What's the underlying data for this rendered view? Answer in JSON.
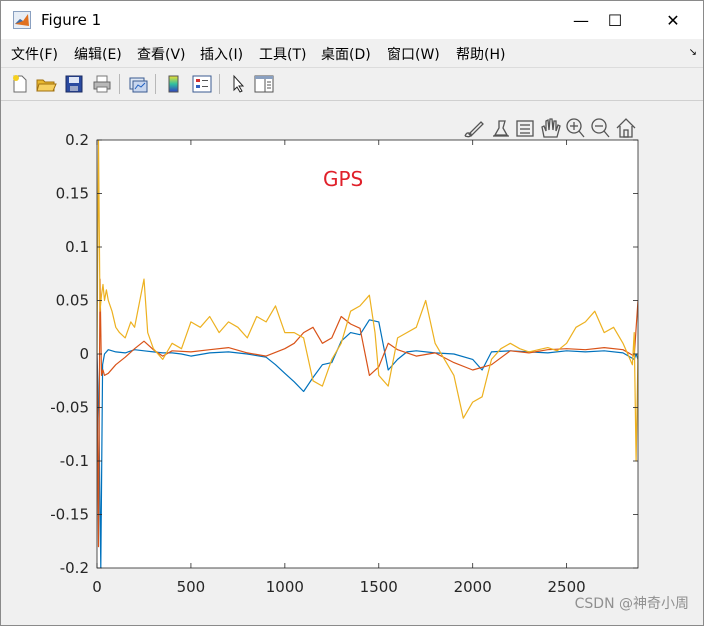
{
  "window": {
    "title": "Figure 1",
    "minimize_glyph": "—",
    "maximize_glyph": "☐",
    "close_glyph": "✕"
  },
  "menu": {
    "items": [
      "文件(F)",
      "编辑(E)",
      "查看(V)",
      "插入(I)",
      "工具(T)",
      "桌面(D)",
      "窗口(W)",
      "帮助(H)"
    ]
  },
  "toolbar": {
    "icons": [
      "new-figure-icon",
      "open-file-icon",
      "save-icon",
      "print-icon",
      "link-plot-icon",
      "colorbar-icon",
      "legend-icon",
      "pointer-icon",
      "property-editor-icon"
    ]
  },
  "axes_toolbar": {
    "icons": [
      "brush-icon",
      "data-tips-icon",
      "rotate-icon",
      "pan-icon",
      "zoom-in-icon",
      "zoom-out-icon",
      "home-icon"
    ]
  },
  "watermark": "CSDN @神奇小周",
  "colors": {
    "series1": "#0072BD",
    "series2": "#D95319",
    "series3": "#EDB120",
    "annotation": "#E0202A"
  },
  "chart_data": {
    "type": "line",
    "title": "",
    "annotation": "GPS",
    "xlabel": "",
    "ylabel": "",
    "xlim": [
      0,
      2880
    ],
    "ylim": [
      -0.2,
      0.2
    ],
    "xticks": [
      0,
      500,
      1000,
      1500,
      2000,
      2500
    ],
    "xtick_labels": [
      "0",
      "500",
      "1000",
      "1500",
      "2000",
      "2500"
    ],
    "yticks": [
      -0.2,
      -0.15,
      -0.1,
      -0.05,
      0,
      0.05,
      0.1,
      0.15,
      0.2
    ],
    "ytick_labels": [
      "-0.2",
      "-0.15",
      "-0.1",
      "-0.05",
      "0",
      "0.05",
      "0.1",
      "0.15",
      "0.2"
    ],
    "grid": false,
    "series": [
      {
        "x": [
          0,
          10,
          20,
          30,
          40,
          60,
          100,
          150,
          200,
          250,
          300,
          350,
          400,
          450,
          500,
          600,
          700,
          800,
          900,
          950,
          1000,
          1050,
          1100,
          1150,
          1200,
          1250,
          1300,
          1350,
          1400,
          1450,
          1500,
          1550,
          1600,
          1650,
          1700,
          1800,
          1900,
          2000,
          2050,
          2100,
          2200,
          2300,
          2400,
          2500,
          2600,
          2700,
          2800,
          2860,
          2870,
          2880
        ],
        "values": [
          0,
          -0.06,
          -0.2,
          -0.01,
          0,
          0.004,
          0.002,
          0.001,
          0.004,
          0.003,
          0.002,
          0.001,
          0.001,
          0.0,
          -0.002,
          0.001,
          0.002,
          0.0,
          -0.003,
          -0.01,
          -0.018,
          -0.026,
          -0.035,
          -0.022,
          -0.01,
          -0.008,
          0.012,
          0.02,
          0.018,
          0.032,
          0.03,
          -0.015,
          -0.005,
          0.002,
          0.003,
          0.001,
          0.0,
          -0.005,
          -0.015,
          0.002,
          0.003,
          0.002,
          0.001,
          0.003,
          0.002,
          0.003,
          0.001,
          -0.005,
          0.0,
          -0.005
        ]
      },
      {
        "x": [
          0,
          8,
          16,
          24,
          32,
          40,
          60,
          100,
          150,
          200,
          250,
          300,
          350,
          400,
          500,
          600,
          700,
          800,
          900,
          1000,
          1050,
          1100,
          1150,
          1200,
          1250,
          1300,
          1350,
          1400,
          1450,
          1500,
          1550,
          1600,
          1700,
          1800,
          1900,
          2000,
          2100,
          2200,
          2300,
          2400,
          2500,
          2600,
          2700,
          2800,
          2860,
          2880
        ],
        "values": [
          0,
          -0.18,
          0.07,
          -0.02,
          -0.015,
          -0.02,
          -0.018,
          -0.01,
          -0.003,
          0.005,
          0.012,
          0.004,
          -0.002,
          0.003,
          0.002,
          0.004,
          0.006,
          0.001,
          -0.002,
          0.005,
          0.01,
          0.02,
          0.025,
          0.01,
          0.015,
          0.035,
          0.028,
          0.024,
          -0.02,
          -0.012,
          0.01,
          0.004,
          -0.002,
          0.001,
          -0.008,
          -0.015,
          -0.01,
          0.003,
          0.001,
          0.004,
          0.005,
          0.004,
          0.006,
          0.004,
          -0.002,
          0.05
        ]
      },
      {
        "x": [
          0,
          8,
          16,
          24,
          32,
          40,
          50,
          60,
          80,
          100,
          120,
          150,
          180,
          200,
          250,
          270,
          300,
          350,
          400,
          450,
          500,
          550,
          600,
          650,
          700,
          750,
          800,
          850,
          900,
          950,
          1000,
          1050,
          1100,
          1150,
          1200,
          1250,
          1300,
          1350,
          1400,
          1450,
          1480,
          1500,
          1550,
          1600,
          1650,
          1700,
          1750,
          1800,
          1850,
          1900,
          1950,
          2000,
          2050,
          2100,
          2150,
          2200,
          2250,
          2300,
          2350,
          2400,
          2450,
          2500,
          2550,
          2600,
          2650,
          2700,
          2750,
          2800,
          2850,
          2860,
          2870,
          2880
        ],
        "values": [
          0,
          0.2,
          0.04,
          0.055,
          0.065,
          0.05,
          0.06,
          0.05,
          0.04,
          0.025,
          0.02,
          0.015,
          0.03,
          0.025,
          0.07,
          0.02,
          0.005,
          -0.005,
          0.01,
          0.005,
          0.03,
          0.025,
          0.035,
          0.02,
          0.03,
          0.025,
          0.015,
          0.035,
          0.03,
          0.045,
          0.02,
          0.02,
          0.015,
          -0.025,
          -0.03,
          -0.005,
          0.01,
          0.04,
          0.045,
          0.055,
          0.02,
          -0.02,
          -0.03,
          0.015,
          0.02,
          0.025,
          0.05,
          0.01,
          -0.005,
          -0.02,
          -0.06,
          -0.045,
          -0.04,
          -0.005,
          0.005,
          0.01,
          0.005,
          0.002,
          0.004,
          0.006,
          0.003,
          0.01,
          0.025,
          0.03,
          0.04,
          0.02,
          0.025,
          0.01,
          -0.01,
          0.02,
          -0.1,
          0.0
        ]
      }
    ]
  }
}
